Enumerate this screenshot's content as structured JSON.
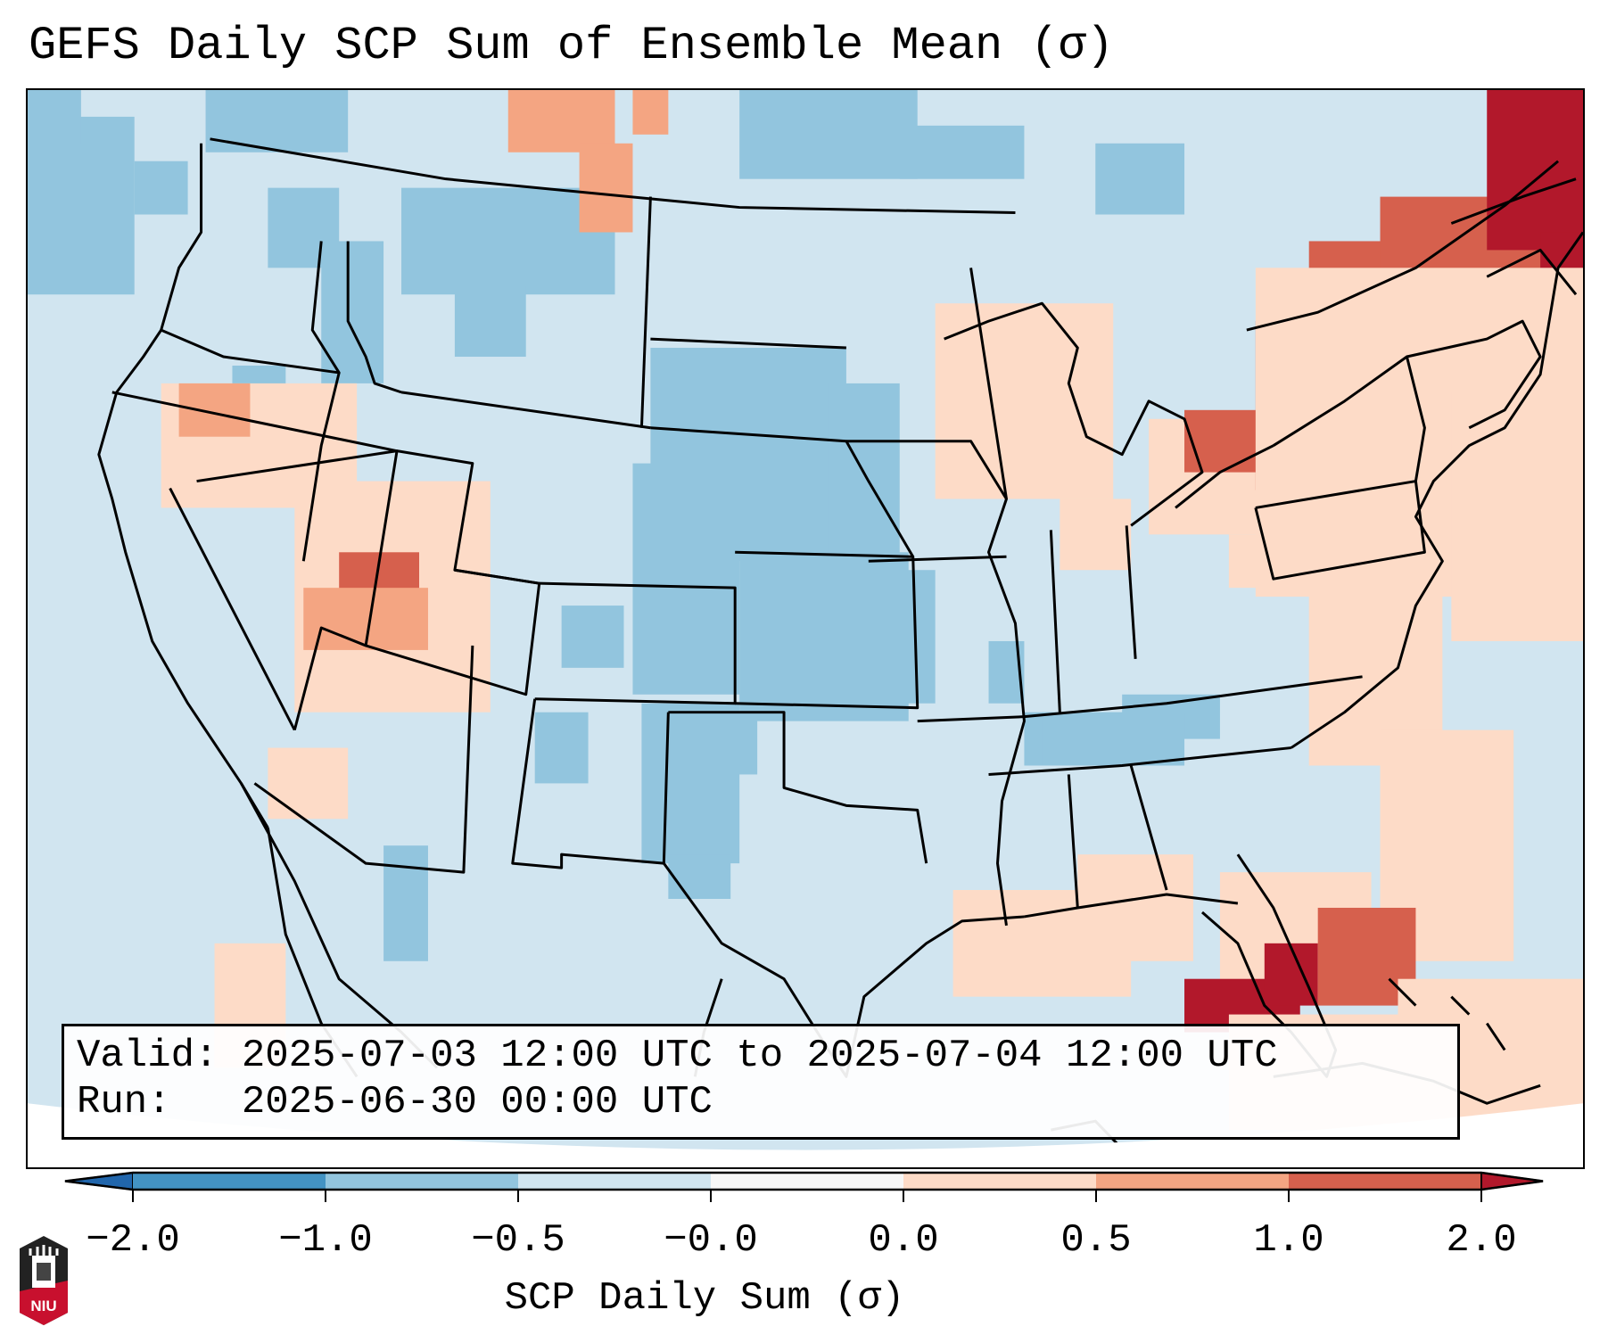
{
  "title": "GEFS Daily SCP Sum of Ensemble Mean (σ)",
  "info": {
    "valid_label": "Valid:",
    "valid_text": "2025-07-03 12:00 UTC to 2025-07-04 12:00 UTC",
    "run_label": "Run:",
    "run_text": "2025-06-30 00:00 UTC"
  },
  "colorbar": {
    "label": "SCP Daily Sum (σ)",
    "tick_labels": [
      "−2.0",
      "−1.0",
      "−0.5",
      "−0.0",
      "0.0",
      "0.5",
      "1.0",
      "2.0"
    ],
    "bins": [
      {
        "range": "< -2.0",
        "color": "#2166ac",
        "extend": "min"
      },
      {
        "range": "-2.0 to -1.0",
        "color": "#4393c3"
      },
      {
        "range": "-1.0 to -0.5",
        "color": "#92c5de"
      },
      {
        "range": "-0.5 to -0.0",
        "color": "#d1e5f0"
      },
      {
        "range": "-0.0 to 0.0",
        "color": "#f7f7f7"
      },
      {
        "range": "0.0 to 0.5",
        "color": "#fddbc7"
      },
      {
        "range": "0.5 to 1.0",
        "color": "#f4a582"
      },
      {
        "range": "1.0 to 2.0",
        "color": "#d6604d"
      },
      {
        "range": "> 2.0",
        "color": "#b2182b",
        "extend": "max"
      }
    ]
  },
  "map": {
    "domain": "CONUS",
    "background_category": "-0.5 to -0.0",
    "regions": [
      {
        "name": "Pacific Northwest offshore",
        "category": "-1.0 to -0.5"
      },
      {
        "name": "Washington / Idaho / Montana",
        "category": "-1.0 to -0.5"
      },
      {
        "name": "Southern Canada Prairies",
        "category": "0.5 to 1.0"
      },
      {
        "name": "Central Plains (SD/NE/KS/OK/TX)",
        "category": "-1.0 to -0.5"
      },
      {
        "name": "Tennessee Valley",
        "category": "-1.0 to -0.5"
      },
      {
        "name": "Utah / Arizona",
        "category": "0.0 to 0.5"
      },
      {
        "name": "Southern Utah core",
        "category": "1.0 to 2.0"
      },
      {
        "name": "Idaho / Nevada",
        "category": "0.5 to 1.0"
      },
      {
        "name": "Michigan / Ohio",
        "category": "0.0 to 0.5"
      },
      {
        "name": "Lake Erie / Ontario",
        "category": "1.0 to 2.0"
      },
      {
        "name": "Northeast / New England",
        "category": "1.0 to 2.0"
      },
      {
        "name": "Maritimes / Quebec",
        "category": "> 2.0"
      },
      {
        "name": "Mid-Atlantic coast (Delmarva)",
        "category": "> 2.0"
      },
      {
        "name": "Western Atlantic offshore",
        "category": "0.0 to 0.5"
      },
      {
        "name": "Gulf of Mexico east",
        "category": "0.0 to 0.5"
      },
      {
        "name": "Florida peninsula / Straits",
        "category": "> 2.0"
      },
      {
        "name": "Bahamas",
        "category": "1.0 to 2.0"
      },
      {
        "name": "Caribbean / Cuba",
        "category": "0.0 to 0.5"
      }
    ]
  },
  "logo": {
    "text": "NIU"
  }
}
